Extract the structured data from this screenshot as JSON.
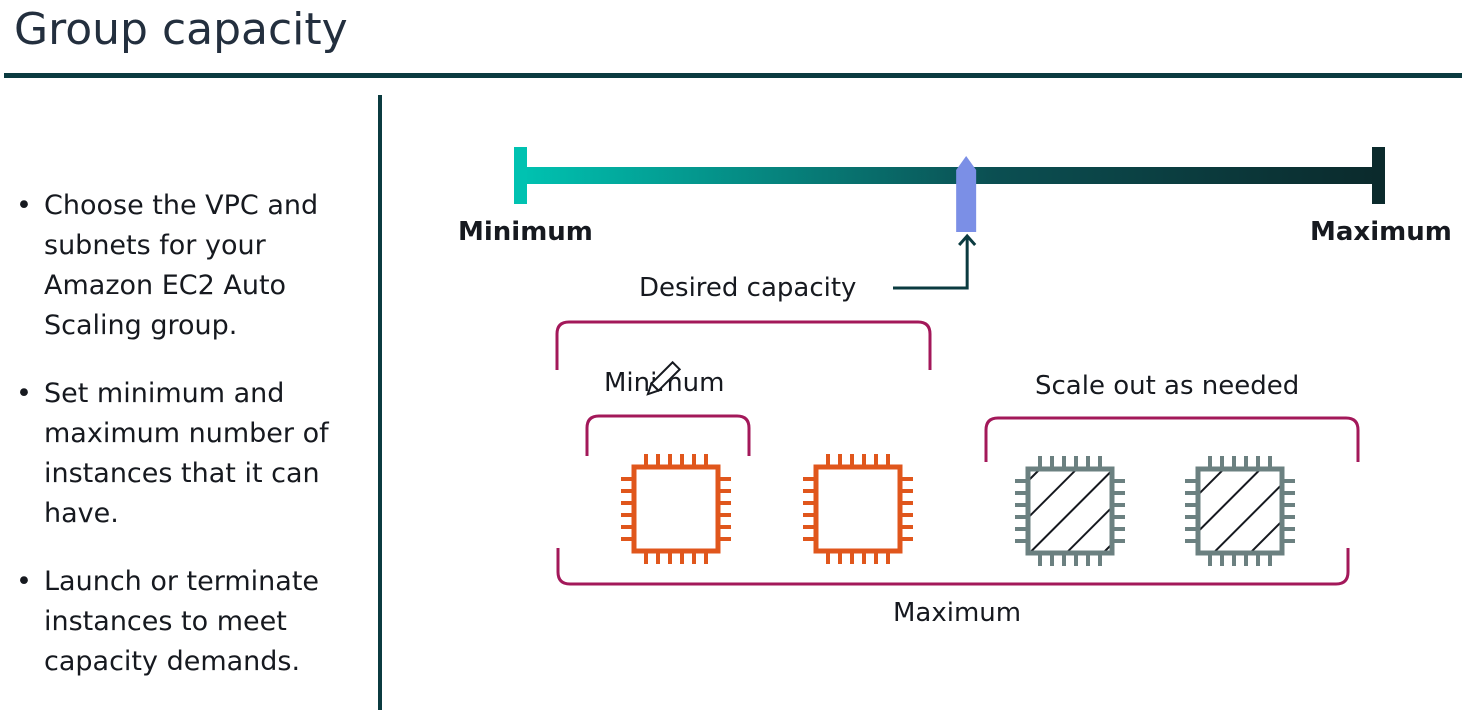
{
  "slide": {
    "title": "Group capacity"
  },
  "bullets": [
    "Choose the VPC and subnets for your Amazon EC2 Auto Scaling group.",
    "Set minimum and maximum number of instances that it can have.",
    "Launch or terminate instances to meet capacity demands."
  ],
  "diagram": {
    "scale": {
      "min_label": "Minimum",
      "max_label": "Maximum",
      "desired_label": "Desired capacity",
      "desired_position_fraction": 0.52
    },
    "groups": {
      "minimum_label": "Minimum",
      "scale_out_label": "Scale out as needed",
      "maximum_label": "Maximum"
    },
    "instances": [
      {
        "state": "running",
        "icon": "chip-icon"
      },
      {
        "state": "running",
        "icon": "chip-icon"
      },
      {
        "state": "potential",
        "icon": "chip-hatched-icon"
      },
      {
        "state": "potential",
        "icon": "chip-hatched-icon"
      }
    ],
    "colors": {
      "teal": "#00c2b1",
      "dark_teal": "#0b2e30",
      "desired_marker": "#7b8fe6",
      "bracket": "#a3185a",
      "running_chip": "#e0561c",
      "potential_chip": "#6b8080"
    }
  }
}
